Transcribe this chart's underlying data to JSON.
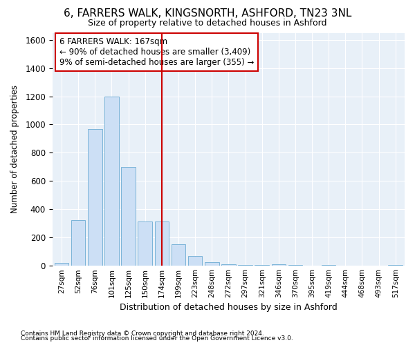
{
  "title_line1": "6, FARRERS WALK, KINGSNORTH, ASHFORD, TN23 3NL",
  "title_line2": "Size of property relative to detached houses in Ashford",
  "xlabel": "Distribution of detached houses by size in Ashford",
  "ylabel": "Number of detached properties",
  "bar_color": "#ccdff5",
  "bar_edge_color": "#7ab3d8",
  "background_color": "#e8f0f8",
  "grid_color": "#ffffff",
  "annotation_line1": "6 FARRERS WALK: 167sqm",
  "annotation_line2": "← 90% of detached houses are smaller (3,409)",
  "annotation_line3": "9% of semi-detached houses are larger (355) →",
  "vline_x": 6,
  "vline_color": "#cc0000",
  "categories": [
    "27sqm",
    "52sqm",
    "76sqm",
    "101sqm",
    "125sqm",
    "150sqm",
    "174sqm",
    "199sqm",
    "223sqm",
    "248sqm",
    "272sqm",
    "297sqm",
    "321sqm",
    "346sqm",
    "370sqm",
    "395sqm",
    "419sqm",
    "444sqm",
    "468sqm",
    "493sqm",
    "517sqm"
  ],
  "values": [
    20,
    320,
    970,
    1200,
    700,
    310,
    310,
    150,
    70,
    25,
    10,
    2,
    2,
    10,
    2,
    1,
    5,
    1,
    1,
    1,
    5
  ],
  "ylim": [
    0,
    1650
  ],
  "yticks": [
    0,
    200,
    400,
    600,
    800,
    1000,
    1200,
    1400,
    1600
  ],
  "footnote1": "Contains HM Land Registry data © Crown copyright and database right 2024.",
  "footnote2": "Contains public sector information licensed under the Open Government Licence v3.0."
}
